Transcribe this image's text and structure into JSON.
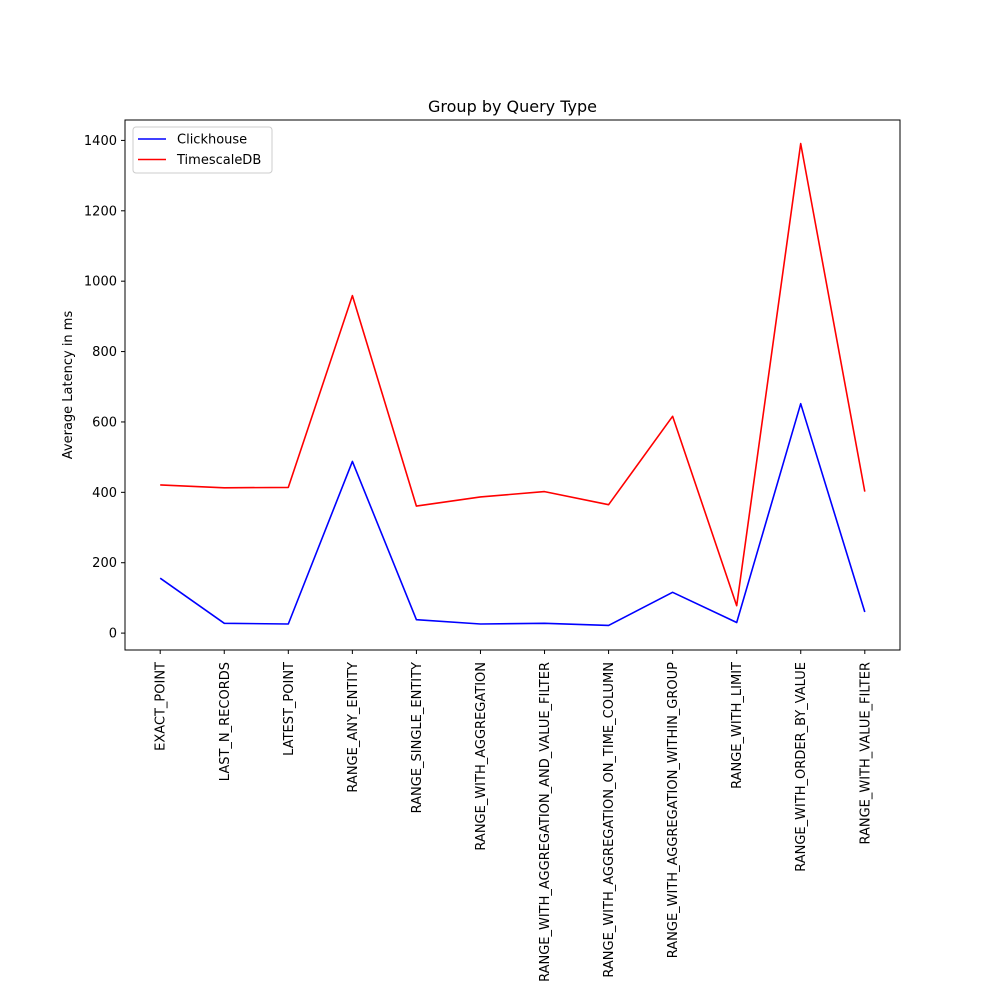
{
  "chart_data": {
    "type": "line",
    "title": "Group by Query Type",
    "xlabel": "",
    "ylabel": "Average Latency in ms",
    "categories": [
      "EXACT_POINT",
      "LAST_N_RECORDS",
      "LATEST_POINT",
      "RANGE_ANY_ENTITY",
      "RANGE_SINGLE_ENTITY",
      "RANGE_WITH_AGGREGATION",
      "RANGE_WITH_AGGREGATION_AND_VALUE_FILTER",
      "RANGE_WITH_AGGREGATION_ON_TIME_COLUMN",
      "RANGE_WITH_AGGREGATION_WITHIN_GROUP",
      "RANGE_WITH_LIMIT",
      "RANGE_WITH_ORDER_BY_VALUE",
      "RANGE_WITH_VALUE_FILTER"
    ],
    "ylim": [
      -48,
      1458
    ],
    "yticks": [
      0,
      200,
      400,
      600,
      800,
      1000,
      1200,
      1400
    ],
    "grid": false,
    "legend_position": "upper-left",
    "series": [
      {
        "name": "Clickhouse",
        "color": "#0000ff",
        "values": [
          156,
          28,
          26,
          488,
          38,
          26,
          28,
          22,
          116,
          30,
          652,
          60
        ]
      },
      {
        "name": "TimescaleDB",
        "color": "#ff0000",
        "values": [
          421,
          413,
          414,
          959,
          361,
          387,
          402,
          365,
          616,
          78,
          1391,
          402
        ]
      }
    ]
  }
}
